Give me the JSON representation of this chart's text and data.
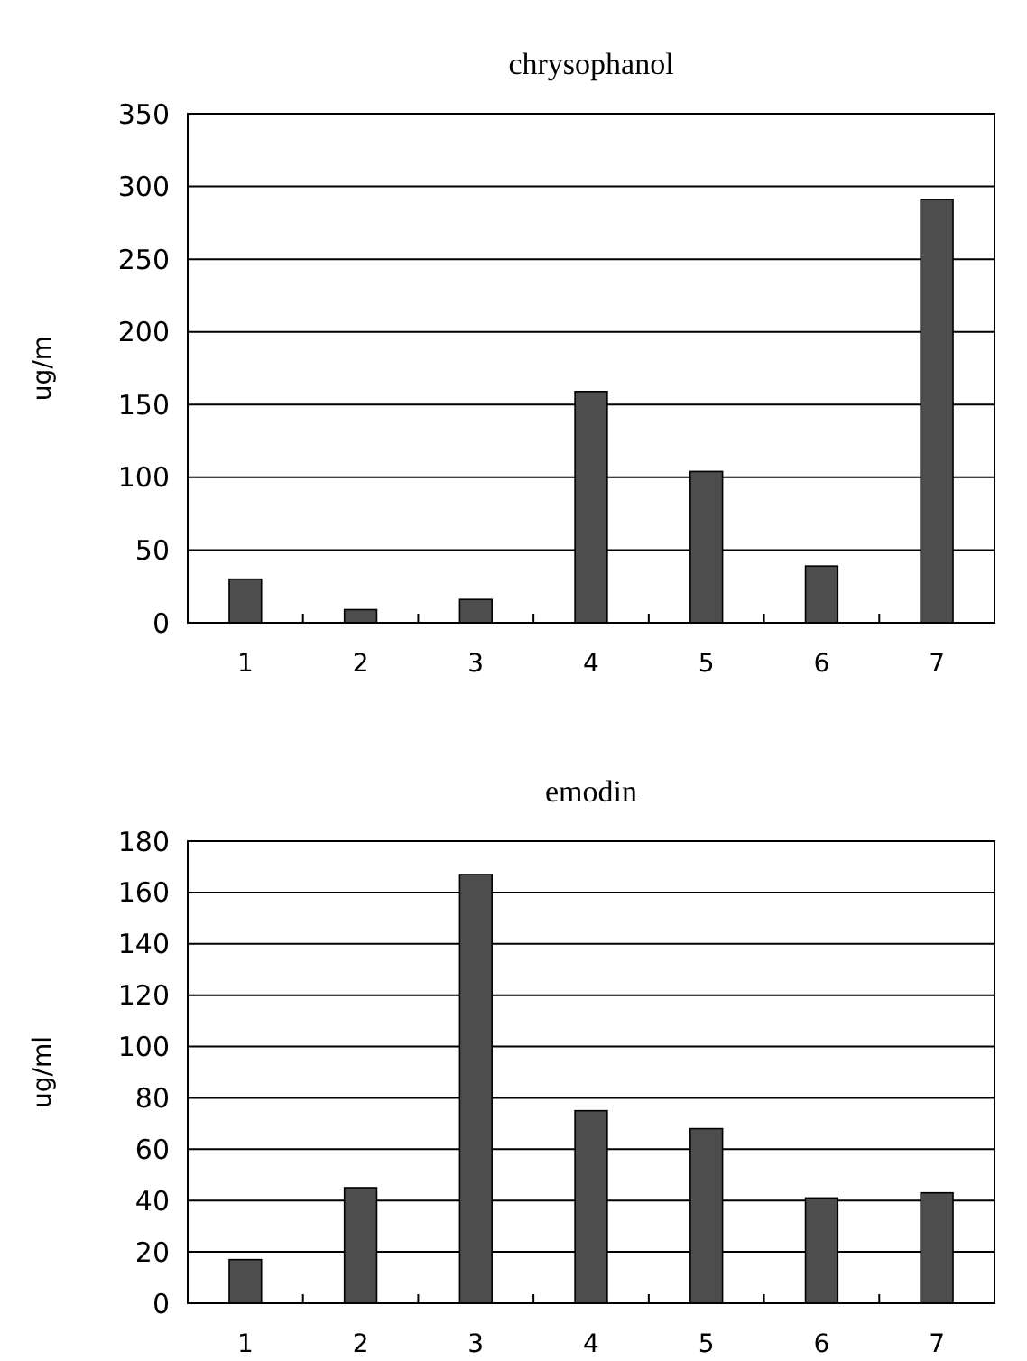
{
  "chart_data": [
    {
      "type": "bar",
      "title": "chrysophanol",
      "ylabel": "ug/m",
      "categories": [
        "1",
        "2",
        "3",
        "4",
        "5",
        "6",
        "7"
      ],
      "values": [
        30,
        9,
        16,
        159,
        104,
        39,
        291
      ],
      "color": "#4d4d4d",
      "ylim": [
        0,
        350
      ],
      "yticks": [
        0,
        50,
        100,
        150,
        200,
        250,
        300,
        350
      ],
      "grid": "y"
    },
    {
      "type": "bar",
      "title": "emodin",
      "ylabel": "ug/ml",
      "categories": [
        "1",
        "2",
        "3",
        "4",
        "5",
        "6",
        "7"
      ],
      "values": [
        17,
        45,
        167,
        75,
        68,
        41,
        43
      ],
      "color": "#4d4d4d",
      "ylim": [
        0,
        180
      ],
      "yticks": [
        0,
        20,
        40,
        60,
        80,
        100,
        120,
        140,
        160,
        180
      ],
      "grid": "y"
    }
  ]
}
